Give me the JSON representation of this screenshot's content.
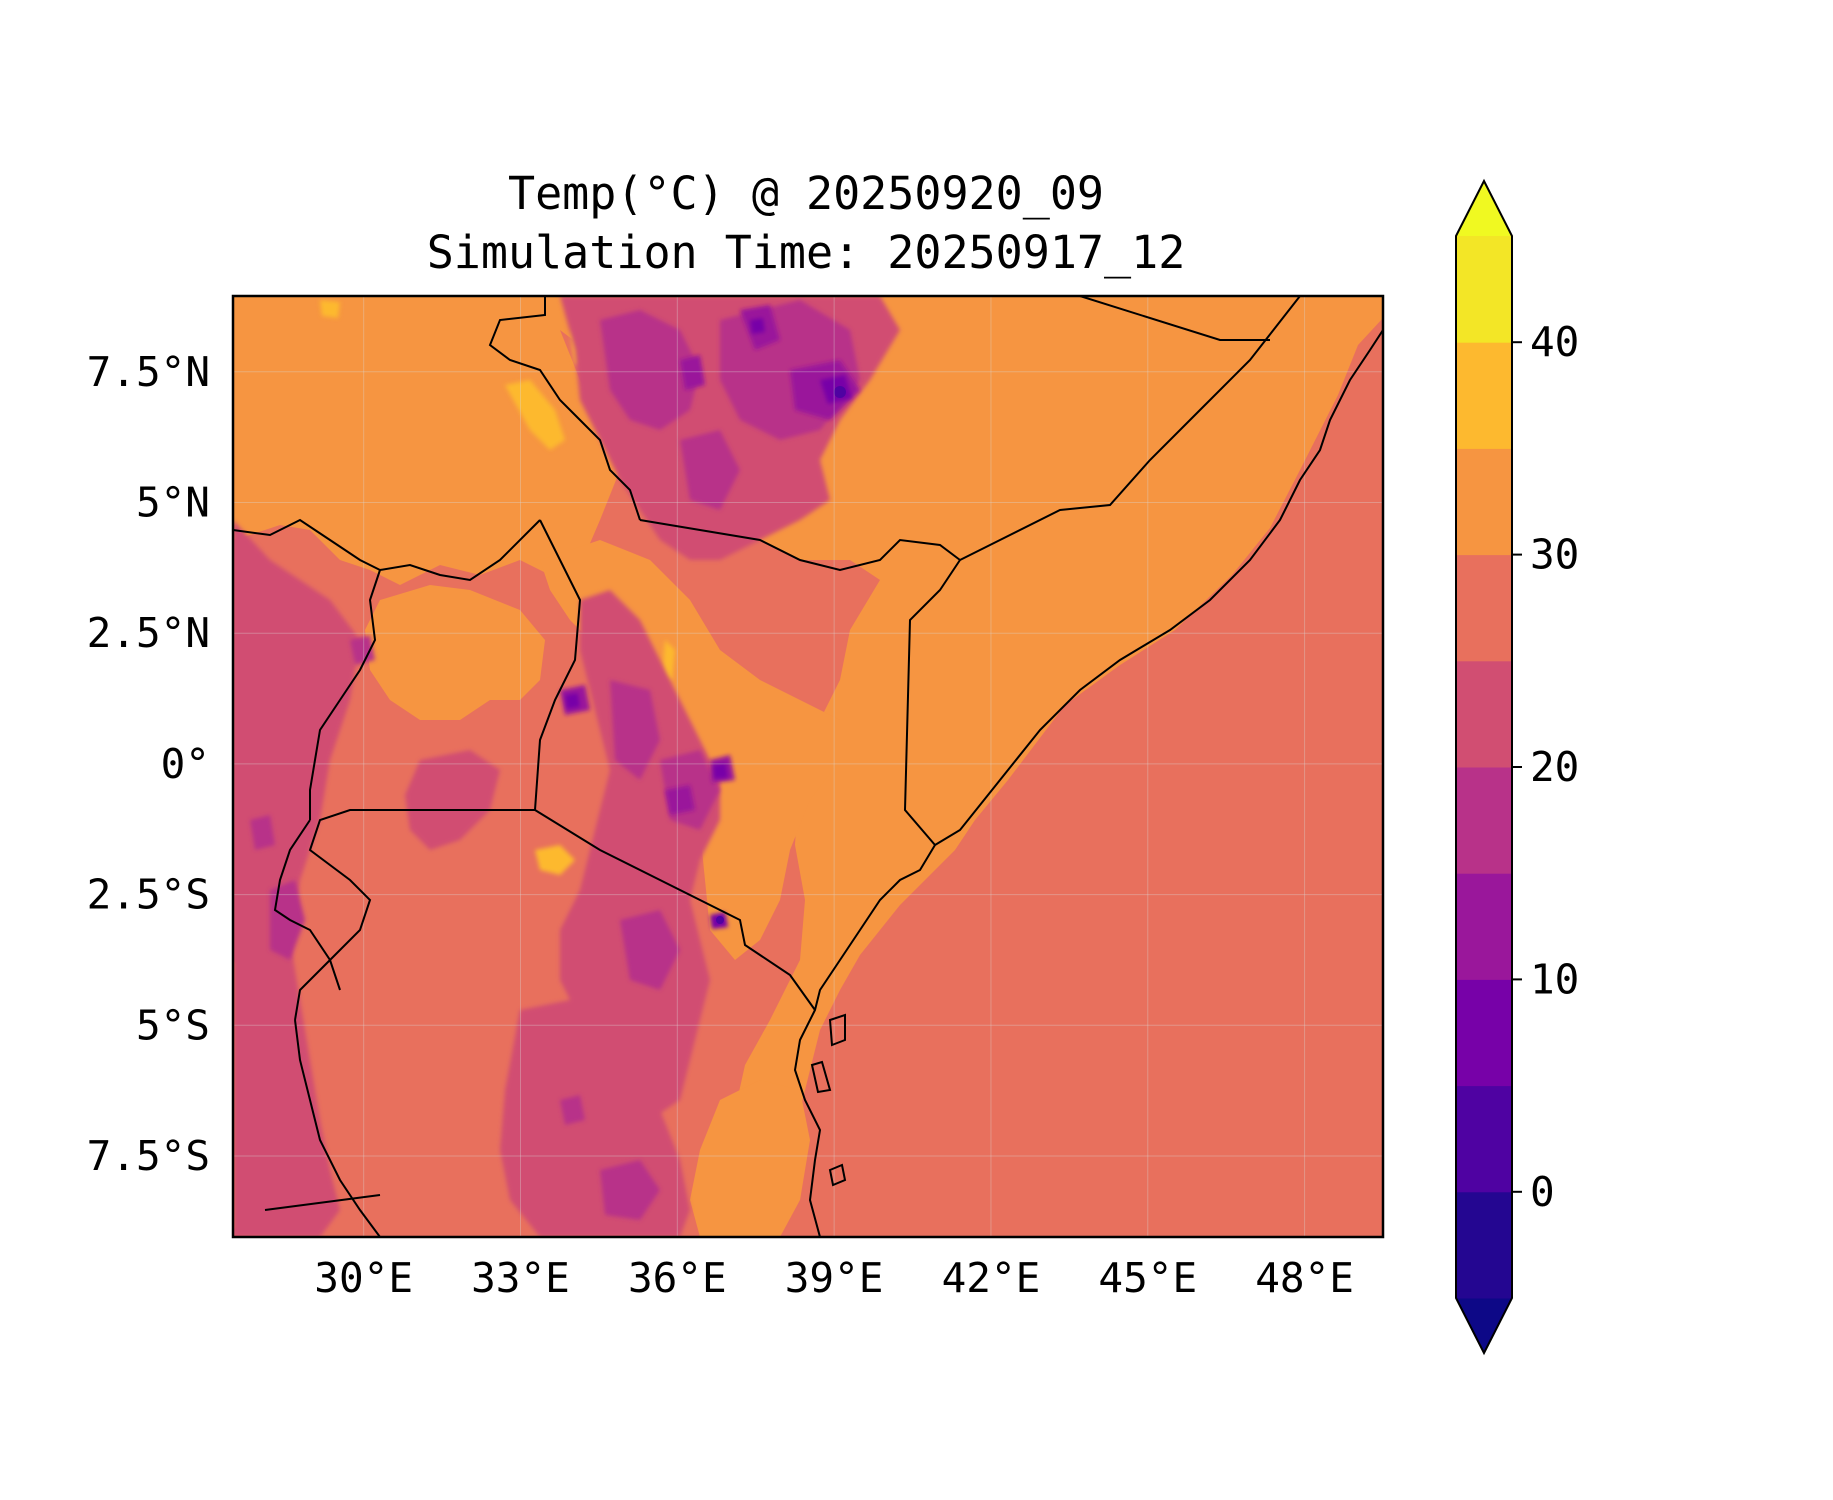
{
  "title_line1": "Temp(°C) @ 20250920_09",
  "title_line2": "Simulation Time: 20250917_12",
  "map": {
    "lon_range": [
      27.5,
      49.5
    ],
    "lat_range": [
      -9.05,
      8.95
    ],
    "lon_ticks": [
      {
        "value": 30,
        "label": "30°E"
      },
      {
        "value": 33,
        "label": "33°E"
      },
      {
        "value": 36,
        "label": "36°E"
      },
      {
        "value": 39,
        "label": "39°E"
      },
      {
        "value": 42,
        "label": "42°E"
      },
      {
        "value": 45,
        "label": "45°E"
      },
      {
        "value": 48,
        "label": "48°E"
      }
    ],
    "lat_ticks": [
      {
        "value": 7.5,
        "label": "7.5°N"
      },
      {
        "value": 5,
        "label": "5°N"
      },
      {
        "value": 2.5,
        "label": "2.5°N"
      },
      {
        "value": 0,
        "label": "0°"
      },
      {
        "value": -2.5,
        "label": "2.5°S"
      },
      {
        "value": -5,
        "label": "5°S"
      },
      {
        "value": -7.5,
        "label": "7.5°S"
      }
    ],
    "gridlines": true,
    "ocean_band": "25–30 °C",
    "land_dominant_band": "30–35 °C",
    "highland_bands": "5–25 °C"
  },
  "colorbar": {
    "extend": "both",
    "min": -5,
    "max": 45,
    "levels": [
      -5,
      0,
      5,
      10,
      15,
      20,
      25,
      30,
      35,
      40,
      45
    ],
    "band_colors": [
      "#240691",
      "#4f02a2",
      "#7701a8",
      "#9a179b",
      "#b83289",
      "#d14e72",
      "#e8705d",
      "#f69541",
      "#fdb92f",
      "#f3e626"
    ],
    "under_color": "#0d0887",
    "over_color": "#f0f921",
    "tick_values": [
      0,
      10,
      20,
      30,
      40
    ],
    "tick_labels": [
      "0",
      "10",
      "20",
      "30",
      "40"
    ]
  }
}
